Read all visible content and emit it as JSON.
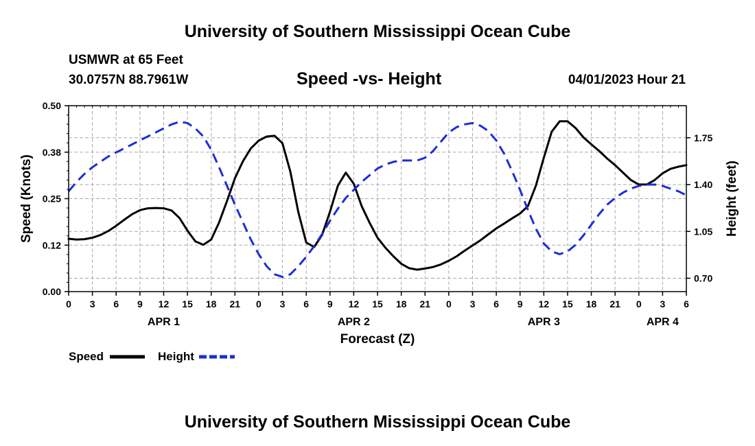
{
  "header": {
    "title": "University of Southern Mississippi Ocean Cube",
    "station": "USMWR at 65 Feet",
    "coords": "30.0757N  88.7961W",
    "subtitle": "Speed -vs- Height",
    "datetime": "04/01/2023 Hour 21"
  },
  "footer": {
    "title": "University of Southern Mississippi Ocean Cube"
  },
  "legend": {
    "speed_label": "Speed",
    "height_label": "Height"
  },
  "chart_data": {
    "type": "line",
    "title": "Speed -vs- Height",
    "xlabel": "Forecast (Z)",
    "ylabel_left": "Speed (Knots)",
    "ylabel_right": "Height (feet)",
    "x_range_hours": [
      0,
      78
    ],
    "x_tick_labels": [
      "0",
      "3",
      "6",
      "9",
      "12",
      "15",
      "18",
      "21",
      "0",
      "3",
      "6",
      "9",
      "12",
      "15",
      "18",
      "21",
      "0",
      "3",
      "6",
      "9",
      "12",
      "15",
      "18",
      "21",
      "0",
      "3",
      "6"
    ],
    "date_labels": [
      {
        "label": "APR 1",
        "hour": 12
      },
      {
        "label": "APR 2",
        "hour": 36
      },
      {
        "label": "APR 3",
        "hour": 60
      },
      {
        "label": "APR 4",
        "hour": 75
      }
    ],
    "y_left": {
      "min": 0,
      "max": 0.5,
      "ticks": [
        0,
        0.125,
        0.25,
        0.375,
        0.5
      ],
      "tick_labels": [
        "0.00",
        "0.12",
        "0.25",
        "0.38",
        "0.50"
      ]
    },
    "y_right": {
      "min": 0.6,
      "max": 1.99,
      "ticks": [
        0.7,
        1.05,
        1.4,
        1.75
      ],
      "tick_labels": [
        "0.70",
        "1.05",
        "1.40",
        "1.75"
      ]
    },
    "grid": true,
    "series": [
      {
        "name": "Speed",
        "axis": "left",
        "color": "#000000",
        "dash": "solid",
        "points": [
          [
            0,
            0.142
          ],
          [
            1,
            0.14
          ],
          [
            2,
            0.141
          ],
          [
            3,
            0.145
          ],
          [
            4,
            0.152
          ],
          [
            5,
            0.163
          ],
          [
            6,
            0.177
          ],
          [
            7,
            0.193
          ],
          [
            8,
            0.208
          ],
          [
            9,
            0.219
          ],
          [
            10,
            0.224
          ],
          [
            11,
            0.225
          ],
          [
            12,
            0.224
          ],
          [
            13,
            0.218
          ],
          [
            14,
            0.198
          ],
          [
            15,
            0.164
          ],
          [
            16,
            0.135
          ],
          [
            17,
            0.126
          ],
          [
            18,
            0.14
          ],
          [
            19,
            0.186
          ],
          [
            20,
            0.244
          ],
          [
            21,
            0.305
          ],
          [
            22,
            0.35
          ],
          [
            23,
            0.385
          ],
          [
            24,
            0.406
          ],
          [
            25,
            0.417
          ],
          [
            26,
            0.419
          ],
          [
            27,
            0.399
          ],
          [
            28,
            0.322
          ],
          [
            29,
            0.214
          ],
          [
            30,
            0.132
          ],
          [
            31,
            0.12
          ],
          [
            32,
            0.152
          ],
          [
            33,
            0.215
          ],
          [
            34,
            0.285
          ],
          [
            35,
            0.32
          ],
          [
            36,
            0.29
          ],
          [
            37,
            0.23
          ],
          [
            38,
            0.185
          ],
          [
            39,
            0.145
          ],
          [
            40,
            0.118
          ],
          [
            41,
            0.095
          ],
          [
            42,
            0.075
          ],
          [
            43,
            0.063
          ],
          [
            44,
            0.059
          ],
          [
            45,
            0.062
          ],
          [
            46,
            0.066
          ],
          [
            47,
            0.073
          ],
          [
            48,
            0.083
          ],
          [
            49,
            0.095
          ],
          [
            50,
            0.11
          ],
          [
            51,
            0.124
          ],
          [
            52,
            0.138
          ],
          [
            53,
            0.154
          ],
          [
            54,
            0.17
          ],
          [
            55,
            0.183
          ],
          [
            56,
            0.197
          ],
          [
            57,
            0.21
          ],
          [
            58,
            0.23
          ],
          [
            59,
            0.285
          ],
          [
            60,
            0.36
          ],
          [
            61,
            0.43
          ],
          [
            62,
            0.458
          ],
          [
            63,
            0.458
          ],
          [
            64,
            0.44
          ],
          [
            65,
            0.415
          ],
          [
            66,
            0.396
          ],
          [
            67,
            0.378
          ],
          [
            68,
            0.358
          ],
          [
            69,
            0.34
          ],
          [
            70,
            0.32
          ],
          [
            71,
            0.3
          ],
          [
            72,
            0.288
          ],
          [
            73,
            0.288
          ],
          [
            74,
            0.3
          ],
          [
            75,
            0.318
          ],
          [
            76,
            0.33
          ],
          [
            77,
            0.336
          ],
          [
            78,
            0.34
          ]
        ]
      },
      {
        "name": "Height",
        "axis": "right",
        "color": "#1b2ed6",
        "dash": "dashed",
        "points": [
          [
            0,
            1.35
          ],
          [
            1,
            1.42
          ],
          [
            2,
            1.48
          ],
          [
            3,
            1.53
          ],
          [
            4,
            1.57
          ],
          [
            5,
            1.61
          ],
          [
            6,
            1.64
          ],
          [
            7,
            1.67
          ],
          [
            8,
            1.7
          ],
          [
            9,
            1.73
          ],
          [
            10,
            1.76
          ],
          [
            11,
            1.79
          ],
          [
            12,
            1.82
          ],
          [
            13,
            1.85
          ],
          [
            14,
            1.87
          ],
          [
            15,
            1.86
          ],
          [
            16,
            1.82
          ],
          [
            17,
            1.76
          ],
          [
            18,
            1.66
          ],
          [
            19,
            1.53
          ],
          [
            20,
            1.39
          ],
          [
            21,
            1.25
          ],
          [
            22,
            1.12
          ],
          [
            23,
            0.99
          ],
          [
            24,
            0.88
          ],
          [
            25,
            0.79
          ],
          [
            26,
            0.73
          ],
          [
            27,
            0.71
          ],
          [
            28,
            0.73
          ],
          [
            29,
            0.79
          ],
          [
            30,
            0.86
          ],
          [
            31,
            0.94
          ],
          [
            32,
            1.03
          ],
          [
            33,
            1.13
          ],
          [
            34,
            1.22
          ],
          [
            35,
            1.3
          ],
          [
            36,
            1.36
          ],
          [
            37,
            1.42
          ],
          [
            38,
            1.47
          ],
          [
            39,
            1.52
          ],
          [
            40,
            1.55
          ],
          [
            41,
            1.57
          ],
          [
            42,
            1.58
          ],
          [
            43,
            1.58
          ],
          [
            44,
            1.58
          ],
          [
            45,
            1.6
          ],
          [
            46,
            1.65
          ],
          [
            47,
            1.72
          ],
          [
            48,
            1.79
          ],
          [
            49,
            1.83
          ],
          [
            50,
            1.85
          ],
          [
            51,
            1.86
          ],
          [
            52,
            1.84
          ],
          [
            53,
            1.8
          ],
          [
            54,
            1.73
          ],
          [
            55,
            1.63
          ],
          [
            56,
            1.5
          ],
          [
            57,
            1.36
          ],
          [
            58,
            1.21
          ],
          [
            59,
            1.07
          ],
          [
            60,
            0.96
          ],
          [
            61,
            0.9
          ],
          [
            62,
            0.88
          ],
          [
            63,
            0.9
          ],
          [
            64,
            0.95
          ],
          [
            65,
            1.02
          ],
          [
            66,
            1.1
          ],
          [
            67,
            1.18
          ],
          [
            68,
            1.25
          ],
          [
            69,
            1.3
          ],
          [
            70,
            1.34
          ],
          [
            71,
            1.37
          ],
          [
            72,
            1.39
          ],
          [
            73,
            1.4
          ],
          [
            74,
            1.4
          ],
          [
            75,
            1.39
          ],
          [
            76,
            1.37
          ],
          [
            77,
            1.35
          ],
          [
            78,
            1.32
          ]
        ]
      }
    ],
    "legend_position": "bottom-left"
  }
}
